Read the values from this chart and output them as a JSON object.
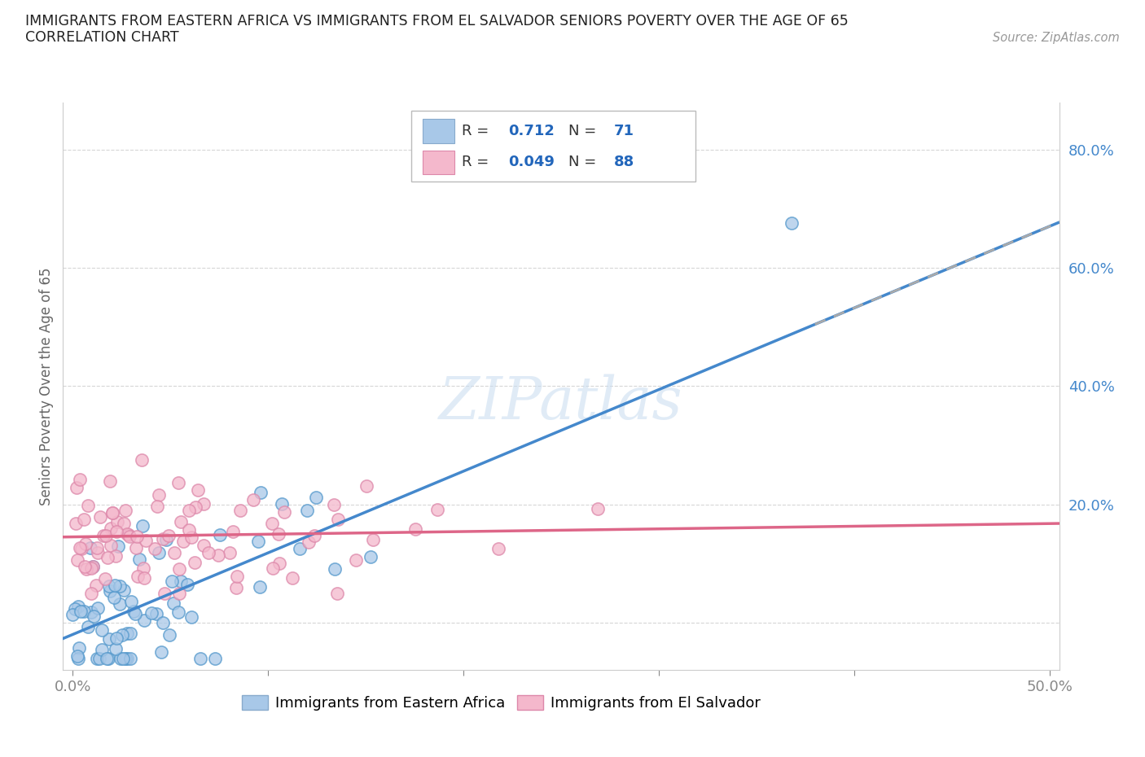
{
  "title_line1": "IMMIGRANTS FROM EASTERN AFRICA VS IMMIGRANTS FROM EL SALVADOR SENIORS POVERTY OVER THE AGE OF 65",
  "title_line2": "CORRELATION CHART",
  "source_text": "Source: ZipAtlas.com",
  "ylabel": "Seniors Poverty Over the Age of 65",
  "xlim": [
    -0.005,
    0.505
  ],
  "ylim": [
    -0.08,
    0.88
  ],
  "x_tick_positions": [
    0.0,
    0.1,
    0.2,
    0.3,
    0.4,
    0.5
  ],
  "x_tick_labels": [
    "0.0%",
    "",
    "",
    "",
    "",
    "50.0%"
  ],
  "y_tick_positions": [
    0.0,
    0.2,
    0.4,
    0.6,
    0.8
  ],
  "y_tick_labels": [
    "",
    "20.0%",
    "40.0%",
    "60.0%",
    "80.0%"
  ],
  "blue_R": 0.712,
  "blue_N": 71,
  "pink_R": 0.049,
  "pink_N": 88,
  "blue_scatter_color": "#A8C8E8",
  "pink_scatter_color": "#F4B8CC",
  "blue_line_color": "#4488CC",
  "pink_line_color": "#DD6688",
  "blue_slope": 1.38,
  "blue_intercept": -0.02,
  "pink_slope": 0.045,
  "pink_intercept": 0.145,
  "grid_color": "#CCCCCC",
  "watermark_text": "ZIPatlas",
  "legend_blue_color": "#A8C8E8",
  "legend_pink_color": "#F4B8CC"
}
